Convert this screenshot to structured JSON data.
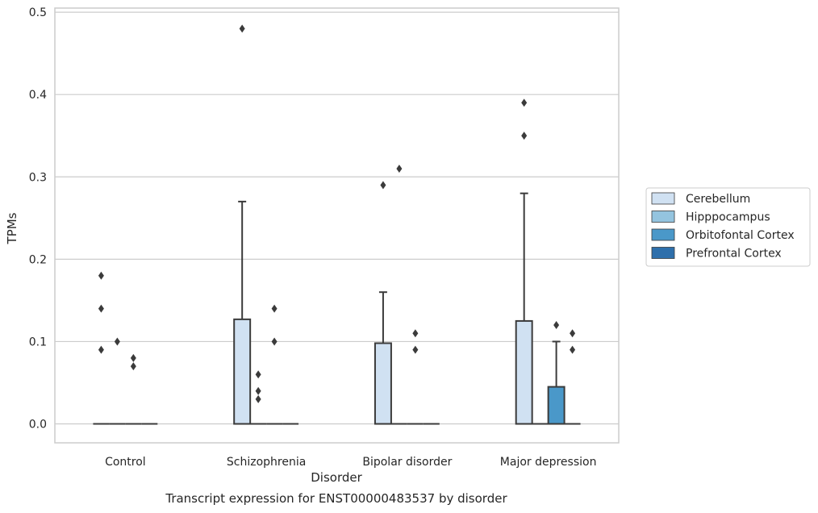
{
  "chart_data": {
    "type": "box",
    "caption": "Transcript expression for ENST00000483537 by disorder",
    "xlabel": "Disorder",
    "ylabel": "TPMs",
    "ylim": [
      -0.023,
      0.505
    ],
    "yticks": [
      0.0,
      0.1,
      0.2,
      0.3,
      0.4,
      0.5
    ],
    "ytick_labels": [
      "0.0",
      "0.1",
      "0.2",
      "0.3",
      "0.4",
      "0.5"
    ],
    "grid": "horizontal",
    "legend_position": "right",
    "categories": [
      "Control",
      "Schizophrenia",
      "Bipolar disorder",
      "Major depression"
    ],
    "series": [
      {
        "name": "Cerebellum",
        "color": "#d0e1f2",
        "boxes": [
          {
            "q1": 0,
            "median": 0,
            "q3": 0,
            "whisker_low": 0,
            "whisker_high": 0,
            "outliers": [
              0.09,
              0.14,
              0.18
            ]
          },
          {
            "q1": 0,
            "median": 0,
            "q3": 0.127,
            "whisker_low": 0,
            "whisker_high": 0.27,
            "outliers": [
              0.48
            ]
          },
          {
            "q1": 0,
            "median": 0,
            "q3": 0.098,
            "whisker_low": 0,
            "whisker_high": 0.16,
            "outliers": [
              0.29
            ]
          },
          {
            "q1": 0,
            "median": 0,
            "q3": 0.125,
            "whisker_low": 0,
            "whisker_high": 0.28,
            "outliers": [
              0.35,
              0.39
            ]
          }
        ]
      },
      {
        "name": "Hipppocampus",
        "color": "#94c4df",
        "boxes": [
          {
            "q1": 0,
            "median": 0,
            "q3": 0,
            "whisker_low": 0,
            "whisker_high": 0,
            "outliers": [
              0.1
            ]
          },
          {
            "q1": 0,
            "median": 0,
            "q3": 0,
            "whisker_low": 0,
            "whisker_high": 0,
            "outliers": [
              0.03,
              0.04,
              0.06
            ]
          },
          {
            "q1": 0,
            "median": 0,
            "q3": 0,
            "whisker_low": 0,
            "whisker_high": 0,
            "outliers": [
              0.31
            ]
          },
          {
            "q1": 0,
            "median": 0,
            "q3": 0,
            "whisker_low": 0,
            "whisker_high": 0,
            "outliers": []
          }
        ]
      },
      {
        "name": "Orbitofontal Cortex",
        "color": "#4a98c9",
        "boxes": [
          {
            "q1": 0,
            "median": 0,
            "q3": 0,
            "whisker_low": 0,
            "whisker_high": 0,
            "outliers": [
              0.07,
              0.08
            ]
          },
          {
            "q1": 0,
            "median": 0,
            "q3": 0,
            "whisker_low": 0,
            "whisker_high": 0,
            "outliers": [
              0.1,
              0.14
            ]
          },
          {
            "q1": 0,
            "median": 0,
            "q3": 0,
            "whisker_low": 0,
            "whisker_high": 0,
            "outliers": [
              0.09,
              0.11
            ]
          },
          {
            "q1": 0,
            "median": 0,
            "q3": 0.045,
            "whisker_low": 0,
            "whisker_high": 0.1,
            "outliers": [
              0.12
            ]
          }
        ]
      },
      {
        "name": "Prefrontal Cortex",
        "color": "#2e6fab",
        "boxes": [
          {
            "q1": 0,
            "median": 0,
            "q3": 0,
            "whisker_low": 0,
            "whisker_high": 0,
            "outliers": []
          },
          {
            "q1": 0,
            "median": 0,
            "q3": 0,
            "whisker_low": 0,
            "whisker_high": 0,
            "outliers": []
          },
          {
            "q1": 0,
            "median": 0,
            "q3": 0,
            "whisker_low": 0,
            "whisker_high": 0,
            "outliers": []
          },
          {
            "q1": 0,
            "median": 0,
            "q3": 0,
            "whisker_low": 0,
            "whisker_high": 0,
            "outliers": [
              0.09,
              0.11
            ]
          }
        ]
      }
    ],
    "line_color": "#3b3b3b",
    "grid_color": "#cccccc",
    "frame_color": "#cccccc"
  }
}
